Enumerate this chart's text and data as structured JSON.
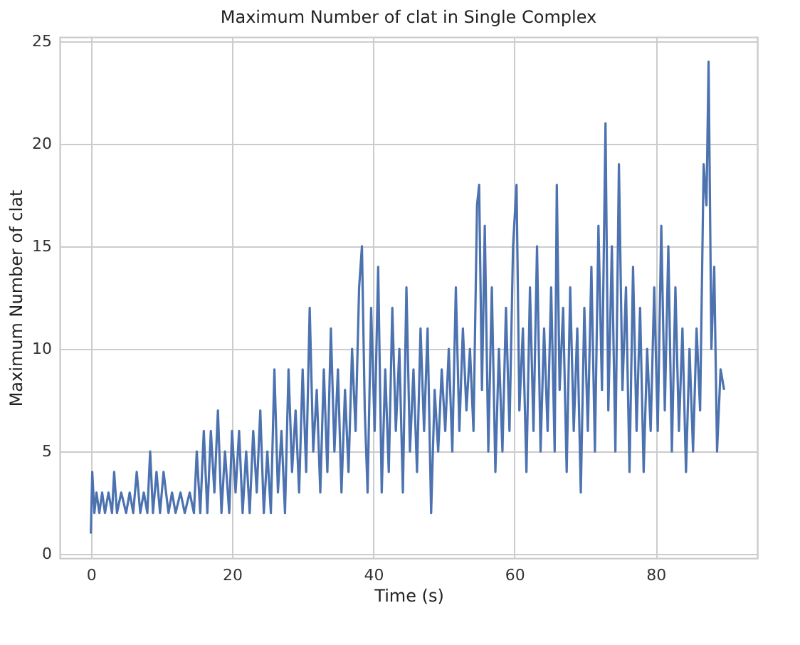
{
  "chart_data": {
    "type": "line",
    "title": "Maximum Number of clat in Single Complex",
    "xlabel": "Time (s)",
    "ylabel": "Maximum Number of clat",
    "x": [
      0,
      0.2,
      0.5,
      0.8,
      1.2,
      1.6,
      2,
      2.5,
      3,
      3.3,
      3.7,
      4.3,
      5,
      5.5,
      6,
      6.5,
      7,
      7.5,
      8,
      8.4,
      8.8,
      9.3,
      9.8,
      10.3,
      11,
      11.5,
      12,
      12.7,
      13.3,
      14,
      14.6,
      15,
      15.5,
      16,
      16.5,
      17,
      17.5,
      18,
      18.5,
      19,
      19.6,
      20,
      20.5,
      21,
      21.5,
      22,
      22.5,
      23,
      23.5,
      24,
      24.5,
      25,
      25.5,
      26,
      26.5,
      27,
      27.5,
      28,
      28.5,
      29,
      29.5,
      30,
      30.5,
      31,
      31.5,
      32,
      32.5,
      33,
      33.5,
      34,
      34.5,
      35,
      35.5,
      36,
      36.5,
      37,
      37.5,
      38,
      38.4,
      38.8,
      39.2,
      39.7,
      40.2,
      40.7,
      41.2,
      41.7,
      42.2,
      42.7,
      43.2,
      43.7,
      44.2,
      44.7,
      45.2,
      45.7,
      46.2,
      46.7,
      47.2,
      47.7,
      48.2,
      48.7,
      49.2,
      49.7,
      50.2,
      50.7,
      51.2,
      51.7,
      52.2,
      52.7,
      53.2,
      53.7,
      54.2,
      54.7,
      55,
      55.4,
      55.8,
      56.3,
      56.8,
      57.3,
      57.8,
      58.3,
      58.8,
      59.3,
      59.8,
      60.3,
      60.7,
      61.2,
      61.7,
      62.2,
      62.7,
      63.2,
      63.7,
      64.2,
      64.7,
      65.2,
      65.7,
      66,
      66.4,
      66.9,
      67.4,
      67.9,
      68.4,
      68.9,
      69.4,
      69.9,
      70.4,
      70.9,
      71.4,
      71.9,
      72.4,
      72.9,
      73.3,
      73.8,
      74.3,
      74.8,
      75.3,
      75.8,
      76.3,
      76.8,
      77.3,
      77.8,
      78.3,
      78.8,
      79.3,
      79.8,
      80.3,
      80.8,
      81.3,
      81.8,
      82.3,
      82.8,
      83.3,
      83.8,
      84.3,
      84.8,
      85.3,
      85.8,
      86.3,
      86.8,
      87.2,
      87.5,
      87.9,
      88.3,
      88.7,
      89.2,
      89.7
    ],
    "series": [
      {
        "color": "#4c72b0",
        "values": [
          1,
          4,
          2,
          3,
          2,
          3,
          2,
          3,
          2,
          4,
          2,
          3,
          2,
          3,
          2,
          4,
          2,
          3,
          2,
          5,
          2,
          4,
          2,
          4,
          2,
          3,
          2,
          3,
          2,
          3,
          2,
          5,
          2,
          6,
          2,
          6,
          3,
          7,
          2,
          5,
          2,
          6,
          3,
          6,
          2,
          5,
          2,
          6,
          3,
          7,
          2,
          5,
          2,
          9,
          3,
          6,
          2,
          9,
          4,
          7,
          3,
          9,
          4,
          12,
          5,
          8,
          3,
          9,
          4,
          11,
          5,
          9,
          3,
          8,
          4,
          10,
          6,
          13,
          15,
          7,
          3,
          12,
          6,
          14,
          3,
          9,
          4,
          12,
          6,
          10,
          3,
          13,
          5,
          9,
          4,
          11,
          6,
          11,
          2,
          8,
          5,
          9,
          6,
          10,
          5,
          13,
          6,
          11,
          7,
          10,
          6,
          17,
          18,
          8,
          16,
          5,
          13,
          4,
          10,
          5,
          12,
          6,
          15,
          18,
          7,
          11,
          4,
          13,
          6,
          15,
          5,
          11,
          6,
          13,
          5,
          18,
          8,
          12,
          4,
          13,
          6,
          11,
          3,
          12,
          6,
          14,
          5,
          16,
          8,
          21,
          7,
          15,
          5,
          19,
          8,
          13,
          4,
          14,
          6,
          12,
          4,
          10,
          6,
          13,
          6,
          16,
          7,
          15,
          5,
          13,
          6,
          11,
          4,
          10,
          5,
          11,
          7,
          19,
          17,
          24,
          10,
          14,
          5,
          9,
          8
        ]
      }
    ],
    "xlim": [
      -4.4,
      94.4
    ],
    "ylim": [
      -0.2,
      25.2
    ],
    "xticks": [
      0,
      20,
      40,
      60,
      80
    ],
    "yticks": [
      0,
      5,
      10,
      15,
      20,
      25
    ],
    "grid": true,
    "marker": "none",
    "line_style": "solid"
  }
}
